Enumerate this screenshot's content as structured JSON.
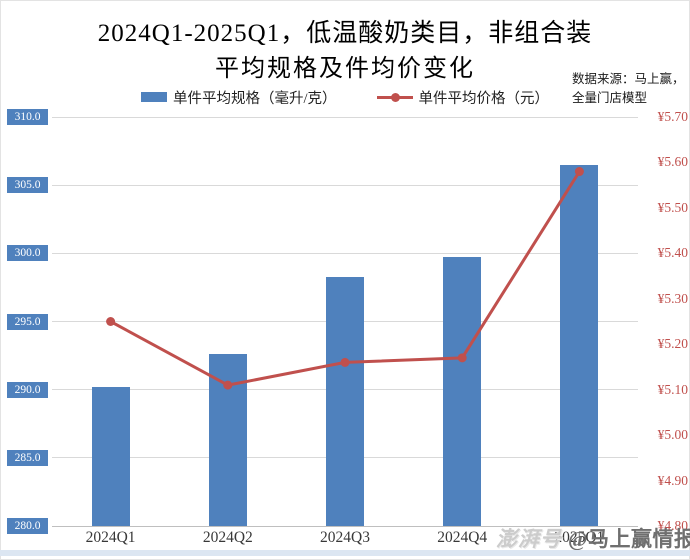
{
  "title": {
    "line1": "2024Q1-2025Q1，低温酸奶类目，非组合装",
    "line2": "平均规格及件均价变化"
  },
  "source_note": {
    "line1": "数据来源：马上赢，",
    "line2": "全量门店模型"
  },
  "legend": {
    "bar_label": "单件平均规格（毫升/克）",
    "line_label": "单件平均价格（元）"
  },
  "watermark": {
    "logo": "澎湃号",
    "handle": "@马上赢情报站"
  },
  "colors": {
    "bar": "#4f81bd",
    "line": "#c0504d",
    "left_axis_chip": "#4f81bd",
    "right_axis_text": "#c0504d",
    "gridline": "#d9d9d9"
  },
  "chart_data": {
    "type": "bar",
    "subtype": "bar+line dual axis",
    "title": "2024Q1-2025Q1，低温酸奶类目，非组合装 平均规格及件均价变化",
    "categories": [
      "2024Q1",
      "2024Q2",
      "2024Q3",
      "2024Q4",
      "2025Q1"
    ],
    "series": [
      {
        "name": "单件平均规格（毫升/克）",
        "type": "bar",
        "axis": "left",
        "color": "#4f81bd",
        "values": [
          290.2,
          292.6,
          298.3,
          299.7,
          306.5
        ]
      },
      {
        "name": "单件平均价格（元）",
        "type": "line",
        "axis": "right",
        "color": "#c0504d",
        "values": [
          5.25,
          5.11,
          5.16,
          5.17,
          5.58
        ]
      }
    ],
    "left_axis": {
      "min": 280,
      "max": 310,
      "step": 5,
      "ticks": [
        "310.0",
        "305.0",
        "300.0",
        "295.0",
        "290.0",
        "285.0",
        "280.0"
      ]
    },
    "right_axis": {
      "min": 4.8,
      "max": 5.7,
      "step": 0.1,
      "ticks": [
        "¥5.70",
        "¥5.60",
        "¥5.50",
        "¥5.40",
        "¥5.30",
        "¥5.20",
        "¥5.10",
        "¥5.00",
        "¥4.90",
        "¥4.80"
      ]
    },
    "grid": true,
    "legend_position": "top"
  }
}
